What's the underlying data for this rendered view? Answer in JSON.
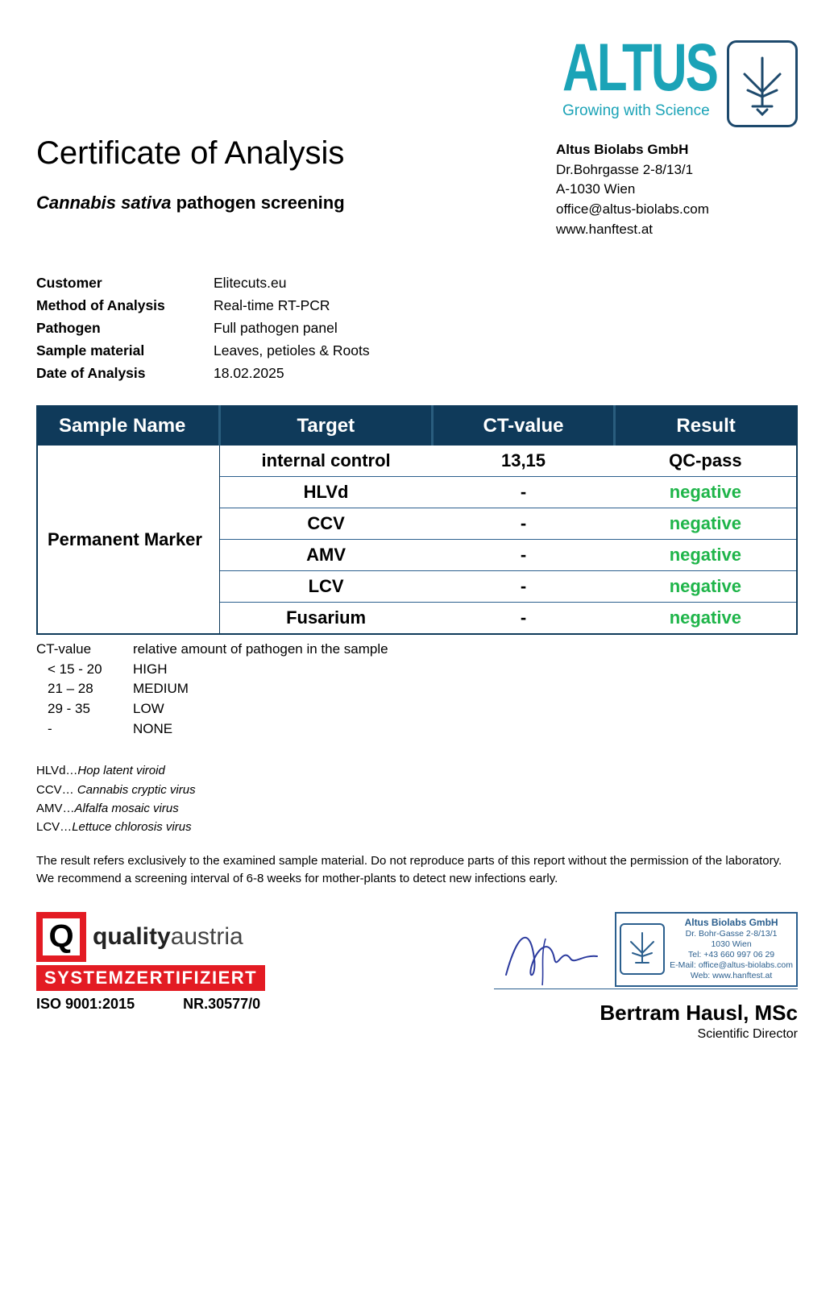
{
  "logo": {
    "word": "ALTUS",
    "slogan": "Growing with Science",
    "brand_color": "#1ba3b7",
    "icon_border_color": "#1e4a6d"
  },
  "company": {
    "name": "Altus Biolabs GmbH",
    "addr1": "Dr.Bohrgasse 2-8/13/1",
    "addr2": "A-1030 Wien",
    "email": "office@altus-biolabs.com",
    "web": "www.hanftest.at"
  },
  "title": "Certificate of Analysis",
  "subtitle_latin": "Cannabis sativa",
  "subtitle_rest": " pathogen screening",
  "meta": {
    "customer_label": "Customer",
    "customer": "Elitecuts.eu",
    "method_label": "Method of Analysis",
    "method": "Real-time RT-PCR",
    "pathogen_label": "Pathogen",
    "pathogen": "Full pathogen panel",
    "material_label": "Sample material",
    "material": "Leaves, petioles & Roots",
    "date_label": "Date of Analysis",
    "date": "18.02.2025"
  },
  "table": {
    "header_bg": "#0f3a5a",
    "header_fg": "#ffffff",
    "row_border": "#2b5f8e",
    "neg_color": "#1fb54a",
    "col_sample": "Sample Name",
    "col_target": "Target",
    "col_ct": "CT-value",
    "col_result": "Result",
    "sample_name": "Permanent Marker",
    "rows": [
      {
        "target": "internal control",
        "ct": "13,15",
        "result": "QC-pass",
        "cls": "result-qc"
      },
      {
        "target": "HLVd",
        "ct": "-",
        "result": "negative",
        "cls": "result-neg"
      },
      {
        "target": "CCV",
        "ct": "-",
        "result": "negative",
        "cls": "result-neg"
      },
      {
        "target": "AMV",
        "ct": "-",
        "result": "negative",
        "cls": "result-neg"
      },
      {
        "target": "LCV",
        "ct": "-",
        "result": "negative",
        "cls": "result-neg"
      },
      {
        "target": "Fusarium",
        "ct": "-",
        "result": "negative",
        "cls": "result-neg"
      }
    ]
  },
  "ct_legend": {
    "title_l": "CT-value",
    "title_r": "relative amount of pathogen in the sample",
    "rows": [
      {
        "range": "< 15 - 20",
        "level": "HIGH"
      },
      {
        "range": "21 – 28",
        "level": "MEDIUM"
      },
      {
        "range": "29 - 35",
        "level": "LOW"
      },
      {
        "range": "-",
        "level": "NONE"
      }
    ]
  },
  "abbr": {
    "hlvd_k": "HLVd…",
    "hlvd_v": "Hop latent viroid",
    "ccv_k": "CCV… ",
    "ccv_v": "Cannabis cryptic virus",
    "amv_k": "AMV…",
    "amv_v": "Alfalfa mosaic virus",
    "lcv_k": "LCV…",
    "lcv_v": "Lettuce chlorosis virus"
  },
  "disclaimer": "The result refers exclusively to the examined sample material. Do not reproduce parts of this report without the permission of the laboratory. We recommend a screening interval of 6-8 weeks for mother-plants to detect new infections early.",
  "qa": {
    "q_letter": "Q",
    "brand_bold": "quality",
    "brand_rest": "austria",
    "bar": "SYSTEMZERTIFIZIERT",
    "iso": "ISO 9001:2015",
    "nr": "NR.30577/0",
    "red": "#e31b23"
  },
  "stamp": {
    "name": "Altus Biolabs GmbH",
    "addr": "Dr. Bohr-Gasse 2-8/13/1",
    "city": "1030 Wien",
    "tel": "Tel: +43 660 997 06 29",
    "email": "E-Mail: office@altus-biolabs.com",
    "web": "Web: www.hanftest.at"
  },
  "signatory": {
    "name": "Bertram Hausl, MSc",
    "role": "Scientific Director"
  }
}
